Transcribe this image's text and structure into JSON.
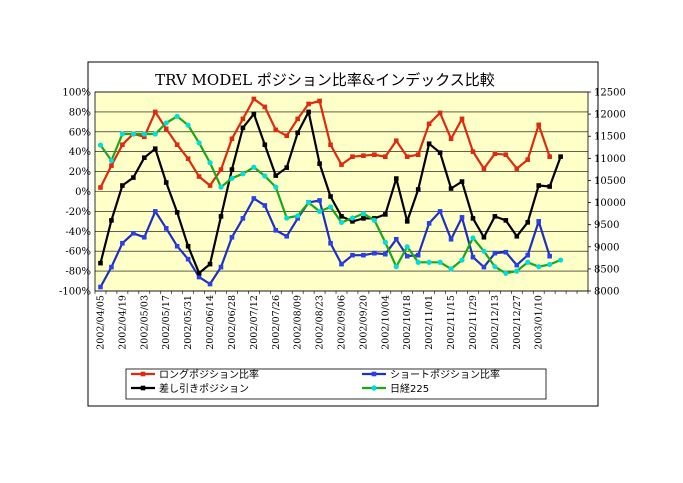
{
  "chart_data": {
    "type": "line",
    "title": "TRV MODEL ポジション比率&インデックス比較",
    "y_left": {
      "ticks": [
        "100%",
        "80%",
        "60%",
        "40%",
        "20%",
        "0%",
        "-20%",
        "-40%",
        "-60%",
        "-80%",
        "-100%"
      ],
      "min": -100,
      "max": 100
    },
    "y_right": {
      "ticks": [
        "12500",
        "12000",
        "11500",
        "11000",
        "10500",
        "10000",
        "9500",
        "9000",
        "8500",
        "8000"
      ],
      "min": 8000,
      "max": 12500
    },
    "x_tick_labels": [
      "2002/04/05",
      "2002/04/19",
      "2002/05/03",
      "2002/05/17",
      "2002/05/31",
      "2002/06/14",
      "2002/06/28",
      "2002/07/12",
      "2002/07/26",
      "2002/08/09",
      "2002/08/23",
      "2002/09/06",
      "2002/09/20",
      "2002/10/04",
      "2002/10/18",
      "2002/11/01",
      "2002/11/15",
      "2002/11/29",
      "2002/12/13",
      "2002/12/27",
      "2003/01/10"
    ],
    "n_points": 45,
    "series": [
      {
        "name": "ロングポジション比率",
        "axis": "left",
        "color": "#dd2a10",
        "marker": "#dd2a10",
        "values": [
          4,
          26,
          47,
          58,
          55,
          80,
          63,
          47,
          33,
          15,
          6,
          22,
          53,
          73,
          93,
          85,
          62,
          56,
          73,
          88,
          91,
          47,
          27,
          35,
          36,
          37,
          35,
          51,
          35,
          37,
          68,
          79,
          53,
          73,
          40,
          23,
          38,
          37,
          23,
          32,
          67,
          35,
          null,
          null,
          null
        ]
      },
      {
        "name": "ショートポジション比率",
        "axis": "left",
        "color": "#1f2fbf",
        "marker": "#2a40e8",
        "values": [
          -96,
          -76,
          -52,
          -42,
          -46,
          -20,
          -37,
          -55,
          -68,
          -86,
          -93,
          -76,
          -46,
          -27,
          -7,
          -14,
          -39,
          -45,
          -27,
          -11,
          -9,
          -52,
          -73,
          -64,
          -64,
          -62,
          -63,
          -48,
          -65,
          -64,
          -32,
          -20,
          -48,
          -26,
          -66,
          -76,
          -62,
          -61,
          -74,
          -64,
          -30,
          -65,
          null,
          null,
          null
        ]
      },
      {
        "name": "差し引きポジション",
        "axis": "left",
        "color": "#000000",
        "marker": "#000000",
        "values": [
          -72,
          -29,
          6,
          14,
          34,
          43,
          9,
          -21,
          -55,
          -82,
          -73,
          -25,
          22,
          64,
          78,
          47,
          16,
          24,
          59,
          80,
          28,
          -5,
          -25,
          -30,
          -27,
          -27,
          -23,
          13,
          -30,
          2,
          48,
          39,
          3,
          10,
          -27,
          -46,
          -25,
          -29,
          -45,
          -31,
          6,
          5,
          35,
          null,
          null
        ]
      },
      {
        "name": "日経225",
        "axis": "right",
        "color": "#1ca61c",
        "marker": "#00dddd",
        "values": [
          11300,
          10950,
          11550,
          11550,
          11550,
          11550,
          11800,
          11950,
          11750,
          11350,
          10900,
          10350,
          10550,
          10650,
          10800,
          10600,
          10350,
          9650,
          9700,
          10000,
          9800,
          9900,
          9550,
          9650,
          9750,
          9600,
          9100,
          8550,
          9000,
          8650,
          8650,
          8650,
          8500,
          8700,
          9200,
          8900,
          8550,
          8400,
          8450,
          8650,
          8550,
          8600,
          8700,
          null,
          null
        ]
      }
    ],
    "legend": "bottom",
    "plot_background": "#ffffc8",
    "grid": true
  }
}
